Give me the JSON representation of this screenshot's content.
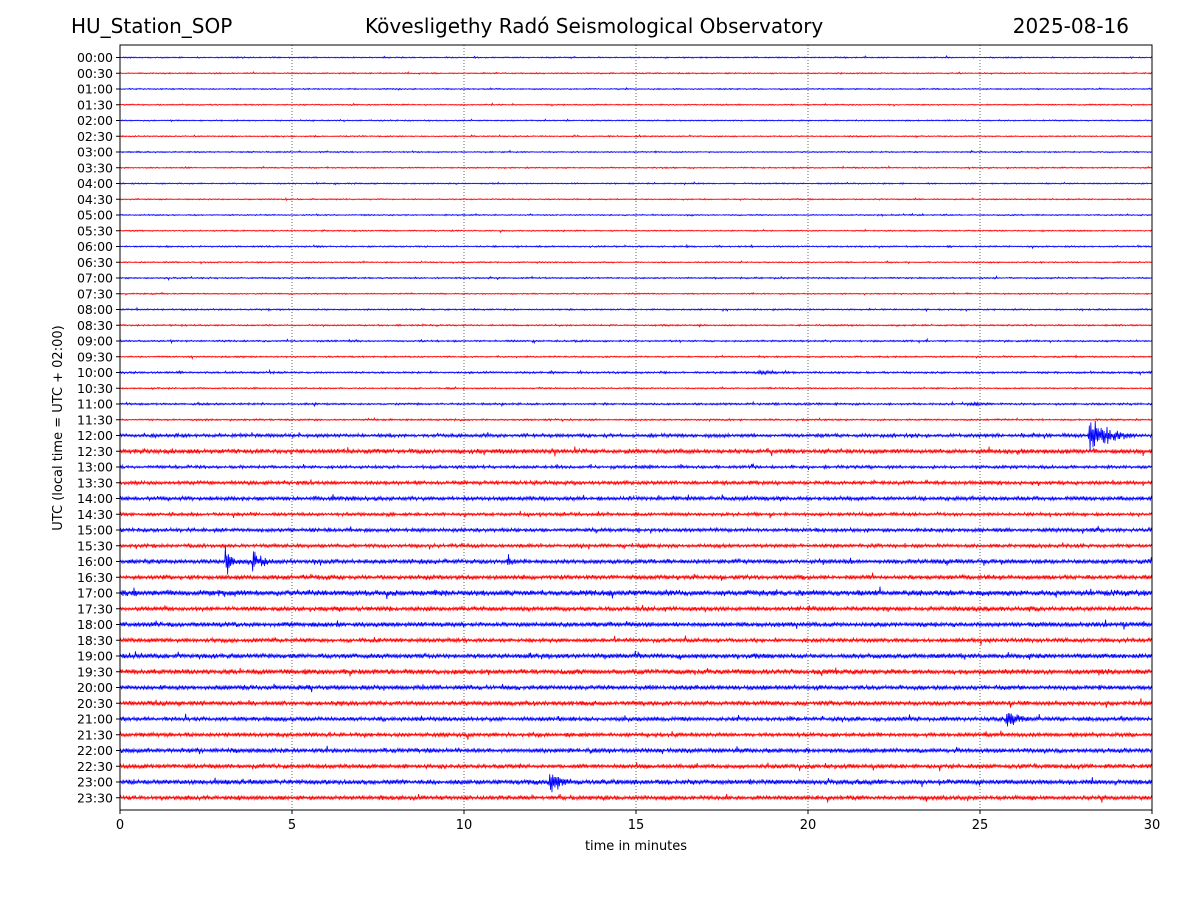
{
  "header": {
    "station": "HU_Station_SOP",
    "observatory": "Kövesligethy Radó Seismological Observatory",
    "date": "2025-08-16"
  },
  "chart_data": {
    "type": "line",
    "xlabel": "time in minutes",
    "ylabel": "UTC (local time = UTC + 02:00)",
    "xlim": [
      0,
      30
    ],
    "x_ticks": [
      0,
      5,
      10,
      15,
      20,
      25,
      30
    ],
    "grid": "vertical dotted lines at each x tick",
    "colors": [
      "#0000ff",
      "#ff0000"
    ],
    "row_labels": [
      "00:00",
      "00:30",
      "01:00",
      "01:30",
      "02:00",
      "02:30",
      "03:00",
      "03:30",
      "04:00",
      "04:30",
      "05:00",
      "05:30",
      "06:00",
      "06:30",
      "07:00",
      "07:30",
      "08:00",
      "08:30",
      "09:00",
      "09:30",
      "10:00",
      "10:30",
      "11:00",
      "11:30",
      "12:00",
      "12:30",
      "13:00",
      "13:30",
      "14:00",
      "14:30",
      "15:00",
      "15:30",
      "16:00",
      "16:30",
      "17:00",
      "17:30",
      "18:00",
      "18:30",
      "19:00",
      "19:30",
      "20:00",
      "20:30",
      "21:00",
      "21:30",
      "22:00",
      "22:30",
      "23:00",
      "23:30"
    ],
    "noise_level": [
      0.5,
      0.5,
      0.5,
      0.5,
      0.5,
      0.5,
      0.5,
      0.5,
      0.5,
      0.5,
      0.5,
      0.5,
      0.6,
      0.5,
      0.6,
      0.5,
      0.6,
      0.6,
      0.7,
      0.6,
      0.8,
      0.6,
      0.8,
      0.7,
      1.4,
      1.8,
      1.2,
      1.5,
      1.6,
      1.3,
      1.5,
      1.4,
      1.8,
      1.7,
      2.4,
      1.8,
      1.9,
      1.6,
      1.9,
      2.0,
      1.8,
      1.8,
      1.7,
      1.6,
      1.8,
      1.7,
      2.0,
      1.7
    ],
    "events": [
      {
        "row": "06:00",
        "minute": 16.5,
        "amplitude": 2,
        "duration_min": 0.5
      },
      {
        "row": "10:00",
        "minute": 18.6,
        "amplitude": 3,
        "duration_min": 2.5
      },
      {
        "row": "11:00",
        "minute": 24.8,
        "amplitude": 3,
        "duration_min": 0.8
      },
      {
        "row": "12:00",
        "minute": 28.2,
        "amplitude": 22,
        "duration_min": 1.8
      },
      {
        "row": "12:30",
        "minute": 1.5,
        "amplitude": 4,
        "duration_min": 1.2
      },
      {
        "row": "16:00",
        "minute": 3.1,
        "amplitude": 20,
        "duration_min": 0.6
      },
      {
        "row": "16:00",
        "minute": 3.9,
        "amplitude": 14,
        "duration_min": 1.0
      },
      {
        "row": "16:00",
        "minute": 11.3,
        "amplitude": 8,
        "duration_min": 0.7
      },
      {
        "row": "17:00",
        "minute": 0.4,
        "amplitude": 6,
        "duration_min": 0.6
      },
      {
        "row": "19:30",
        "minute": 28.5,
        "amplitude": 4,
        "duration_min": 1.2
      },
      {
        "row": "20:00",
        "minute": 29.6,
        "amplitude": 4,
        "duration_min": 0.4
      },
      {
        "row": "21:00",
        "minute": 25.8,
        "amplitude": 11,
        "duration_min": 1.6
      },
      {
        "row": "23:00",
        "minute": 12.5,
        "amplitude": 16,
        "duration_min": 1.2
      }
    ]
  }
}
